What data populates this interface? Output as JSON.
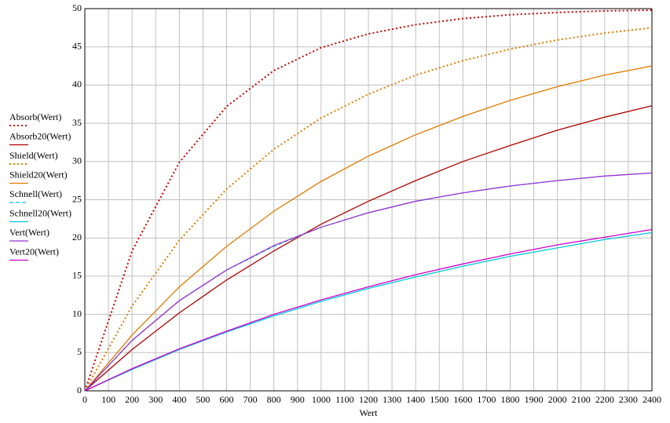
{
  "chart_data": {
    "type": "line",
    "xlabel": "Wert",
    "x": [
      0,
      200,
      400,
      600,
      800,
      1000,
      1200,
      1400,
      1600,
      1800,
      2000,
      2200,
      2400
    ],
    "series": [
      {
        "name": "Absorb(Wert)",
        "color": "#cc0000",
        "style": "dotted",
        "values": [
          0,
          18.3,
          29.9,
          37.2,
          41.9,
          44.9,
          46.7,
          47.9,
          48.7,
          49.2,
          49.5,
          49.7,
          49.8
        ]
      },
      {
        "name": "Absorb20(Wert)",
        "color": "#b00000",
        "style": "solid",
        "values": [
          0,
          5.4,
          10.2,
          14.5,
          18.3,
          21.8,
          24.8,
          27.5,
          30.0,
          32.1,
          34.1,
          35.8,
          37.3
        ]
      },
      {
        "name": "Shield(Wert)",
        "color": "#e07b00",
        "style": "dotted",
        "values": [
          0,
          11.1,
          19.7,
          26.4,
          31.6,
          35.7,
          38.8,
          41.3,
          43.2,
          44.7,
          45.9,
          46.8,
          47.5
        ]
      },
      {
        "name": "Shield20(Wert)",
        "color": "#e07b00",
        "style": "solid",
        "values": [
          0,
          7.3,
          13.6,
          18.9,
          23.5,
          27.4,
          30.7,
          33.5,
          35.9,
          38.0,
          39.8,
          41.3,
          42.5
        ]
      },
      {
        "name": "Schnell(Wert)",
        "color": "#00c8d8",
        "style": "dashed",
        "values": [
          0,
          6.6,
          11.8,
          15.8,
          18.9,
          21.4,
          23.3,
          24.8,
          25.9,
          26.8,
          27.5,
          28.1,
          28.5
        ]
      },
      {
        "name": "Schnell20(Wert)",
        "color": "#00c8d8",
        "style": "solid",
        "values": [
          0,
          2.8,
          5.4,
          7.7,
          9.8,
          11.7,
          13.4,
          14.9,
          16.3,
          17.6,
          18.7,
          19.8,
          20.7
        ]
      },
      {
        "name": "Vert(Wert)",
        "color": "#9933cc",
        "style": "solid",
        "values": [
          0,
          6.6,
          11.8,
          15.8,
          19.0,
          21.4,
          23.3,
          24.8,
          25.9,
          26.8,
          27.5,
          28.1,
          28.5
        ]
      },
      {
        "name": "Vert20(Wert)",
        "color": "#cc00cc",
        "style": "solid",
        "values": [
          0,
          2.9,
          5.5,
          7.8,
          10.0,
          11.9,
          13.6,
          15.2,
          16.6,
          17.9,
          19.1,
          20.1,
          21.1
        ]
      }
    ],
    "xlim": [
      0,
      2400
    ],
    "ylim": [
      0,
      50
    ],
    "xticks": [
      0,
      100,
      200,
      300,
      400,
      500,
      600,
      700,
      800,
      900,
      1000,
      1100,
      1200,
      1300,
      1400,
      1500,
      1600,
      1700,
      1800,
      1900,
      2000,
      2100,
      2200,
      2300,
      2400
    ],
    "yticks": [
      0,
      5,
      10,
      15,
      20,
      25,
      30,
      35,
      40,
      45,
      50
    ],
    "grid": true
  }
}
